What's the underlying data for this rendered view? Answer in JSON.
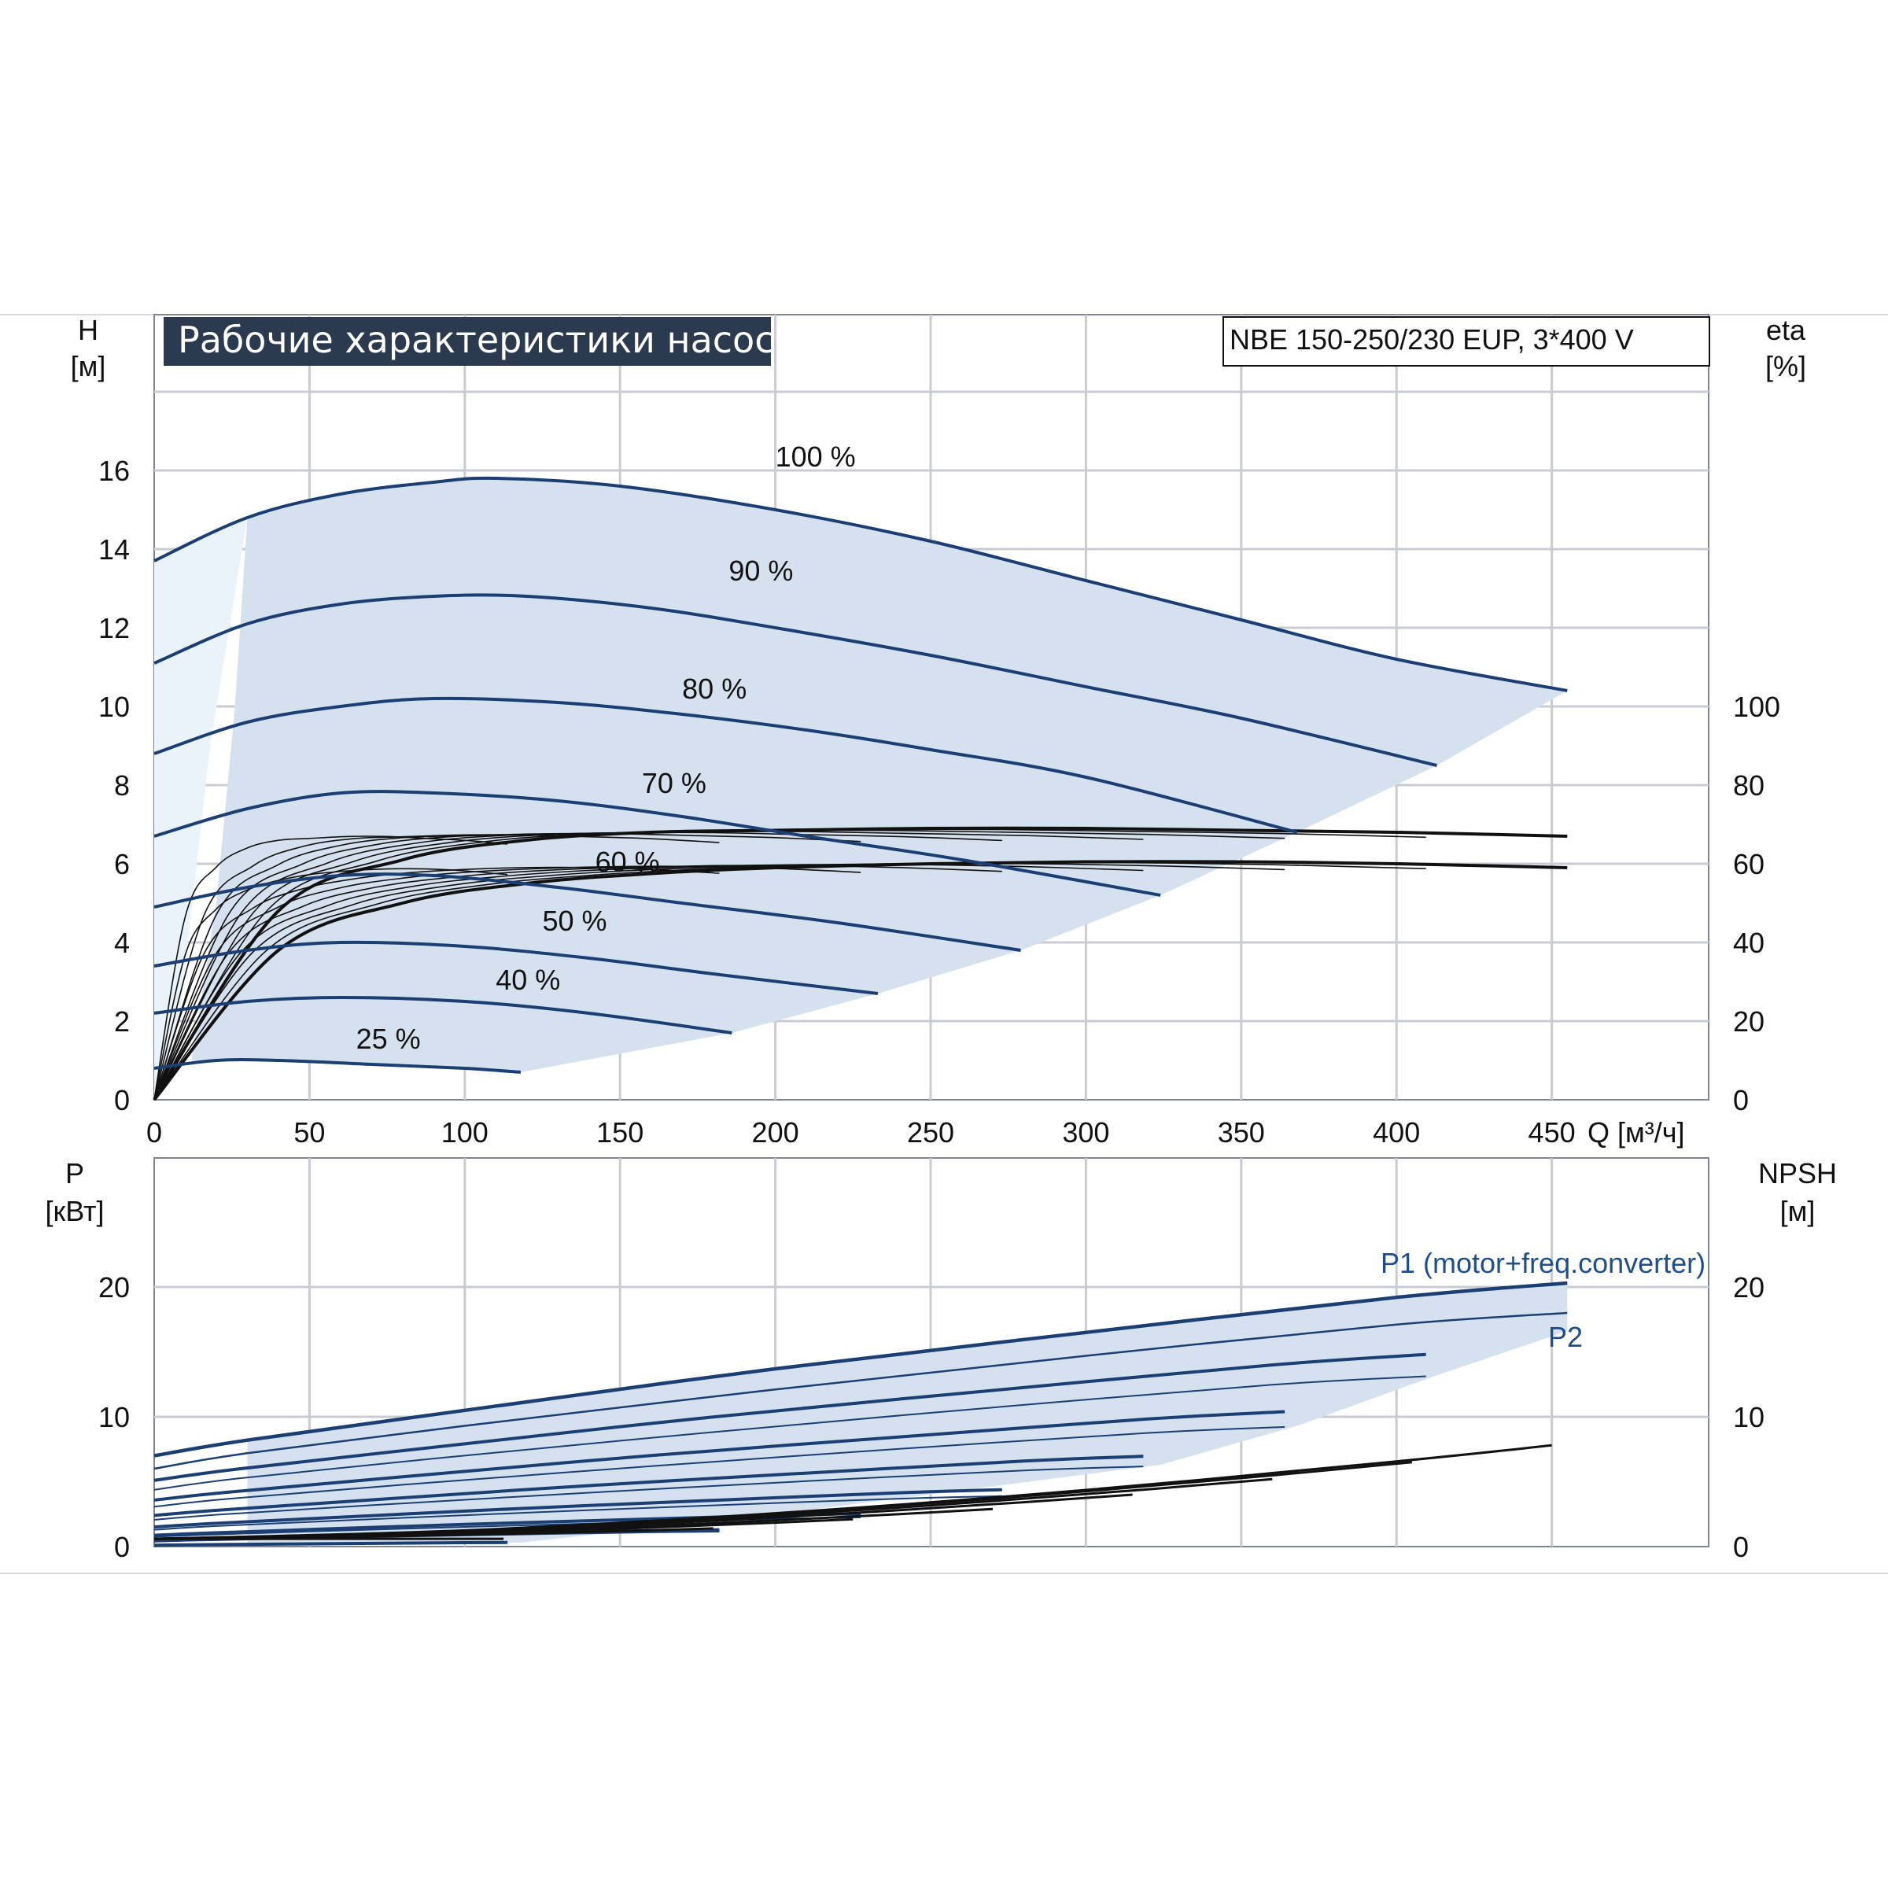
{
  "header": {
    "title": "Рабочие характеристики насоса",
    "model": "NBE 150-250/230 EUP, 3*400 V"
  },
  "colors": {
    "curve_blue": "#1b3f73",
    "fill_blue": "#d5e1ee",
    "fill_light": "#eaf3fa",
    "grid": "#c8ccd2",
    "eff_black": "#111111",
    "header_bg": "#2b3a4f"
  },
  "chart_data": [
    {
      "type": "line",
      "title": "Рабочие характеристики насоса",
      "xlabel": "Q [м³/ч]",
      "ylabel_left": [
        "H",
        "[м]"
      ],
      "ylabel_right": [
        "eta",
        "[%]"
      ],
      "xlim": [
        0,
        500
      ],
      "ylim": [
        0,
        18
      ],
      "x_ticks": [
        "0",
        "50",
        "100",
        "150",
        "200",
        "250",
        "300",
        "350",
        "400",
        "450"
      ],
      "y_ticks": [
        "0",
        "2",
        "4",
        "6",
        "8",
        "10",
        "12",
        "14",
        "16"
      ],
      "y2_ticks": [
        "0",
        "20",
        "40",
        "60",
        "80",
        "100"
      ],
      "y2_range": [
        0,
        100
      ],
      "grid": true,
      "series": [
        {
          "name": "100 %",
          "x": [
            0,
            30,
            60,
            90,
            110,
            150,
            200,
            250,
            300,
            350,
            400,
            455
          ],
          "y": [
            13.7,
            14.8,
            15.4,
            15.7,
            15.8,
            15.6,
            15.0,
            14.2,
            13.2,
            12.2,
            11.2,
            10.4
          ]
        },
        {
          "name": "90 %",
          "x": [
            0,
            30,
            60,
            90,
            120,
            160,
            200,
            250,
            300,
            350,
            413
          ],
          "y": [
            11.1,
            12.1,
            12.6,
            12.8,
            12.8,
            12.5,
            12.0,
            11.3,
            10.5,
            9.7,
            8.5
          ]
        },
        {
          "name": "80 %",
          "x": [
            0,
            30,
            60,
            90,
            130,
            170,
            210,
            250,
            300,
            368
          ],
          "y": [
            8.8,
            9.6,
            10.0,
            10.2,
            10.1,
            9.8,
            9.4,
            8.9,
            8.2,
            6.8
          ]
        },
        {
          "name": "70 %",
          "x": [
            0,
            30,
            60,
            90,
            130,
            170,
            210,
            260,
            324
          ],
          "y": [
            6.7,
            7.4,
            7.8,
            7.8,
            7.6,
            7.2,
            6.7,
            6.1,
            5.2
          ]
        },
        {
          "name": "60 %",
          "x": [
            0,
            30,
            60,
            90,
            130,
            170,
            220,
            279
          ],
          "y": [
            4.9,
            5.4,
            5.7,
            5.7,
            5.4,
            5.0,
            4.5,
            3.8
          ]
        },
        {
          "name": "50 %",
          "x": [
            0,
            30,
            60,
            100,
            140,
            180,
            233
          ],
          "y": [
            3.4,
            3.8,
            4.0,
            3.9,
            3.6,
            3.2,
            2.7
          ]
        },
        {
          "name": "40 %",
          "x": [
            0,
            30,
            60,
            100,
            140,
            186
          ],
          "y": [
            2.2,
            2.5,
            2.6,
            2.5,
            2.2,
            1.7
          ]
        },
        {
          "name": "25 %",
          "x": [
            0,
            20,
            40,
            70,
            100,
            118
          ],
          "y": [
            0.8,
            1.0,
            1.0,
            0.9,
            0.8,
            0.7
          ]
        }
      ],
      "efficiency_series": [
        {
          "x": [
            0,
            40,
            80,
            120,
            160,
            200,
            250,
            300,
            350,
            400,
            455
          ],
          "y": [
            0,
            48,
            61,
            66,
            68,
            68.5,
            69,
            69,
            68.5,
            68,
            67
          ]
        },
        {
          "x": [
            0,
            40,
            80,
            120,
            160,
            200,
            250,
            300,
            350,
            400,
            455
          ],
          "y": [
            0,
            38,
            50,
            55,
            57.5,
            59,
            60,
            60.5,
            60.5,
            60,
            59
          ]
        }
      ]
    },
    {
      "type": "line",
      "ylabel_left": [
        "P",
        "[кВт]"
      ],
      "ylabel_right": [
        "NPSH",
        "[м]"
      ],
      "xlim": [
        0,
        500
      ],
      "ylim": [
        0,
        30
      ],
      "y_ticks": [
        "0",
        "10",
        "20"
      ],
      "y2_ticks": [
        "0",
        "10",
        "20"
      ],
      "grid": true,
      "series": [
        {
          "name": "P1 (motor+freq.converter)",
          "x": [
            0,
            30,
            100,
            200,
            300,
            400,
            455
          ],
          "y": [
            7.0,
            8.2,
            10.5,
            13.7,
            16.5,
            19.2,
            20.3
          ]
        },
        {
          "name": "P2",
          "x": [
            0,
            30,
            100,
            200,
            300,
            400,
            455
          ],
          "y": [
            6.0,
            7.2,
            9.3,
            12.1,
            14.7,
            17.1,
            18.0
          ]
        }
      ]
    }
  ],
  "annotations": {
    "p1_label": "P1 (motor+freq.converter)",
    "p2_label": "P2"
  }
}
